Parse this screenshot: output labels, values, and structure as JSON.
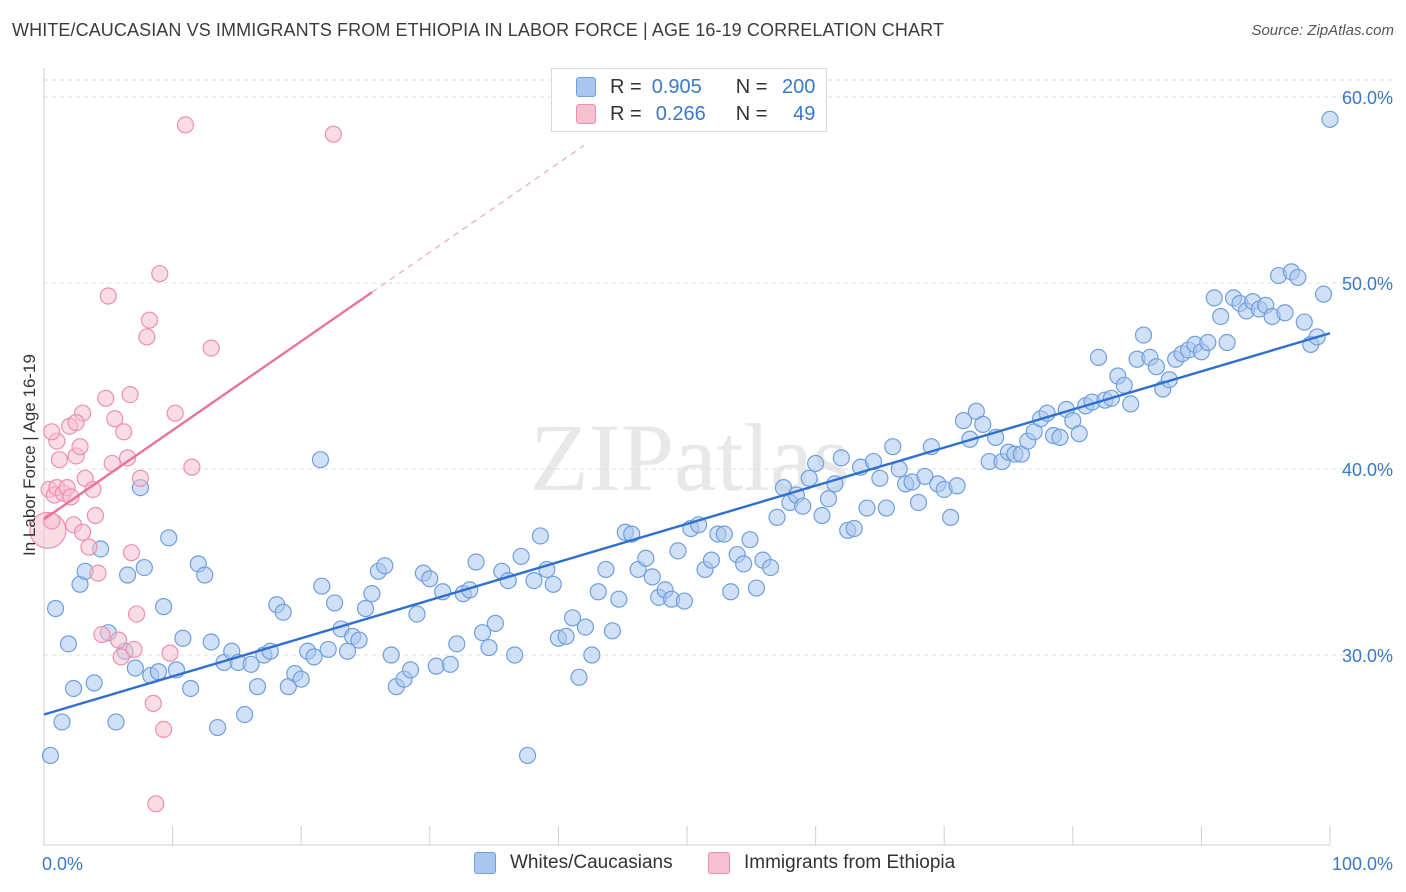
{
  "header": {
    "title": "WHITE/CAUCASIAN VS IMMIGRANTS FROM ETHIOPIA IN LABOR FORCE | AGE 16-19 CORRELATION CHART",
    "source": "Source: ZipAtlas.com"
  },
  "watermark": "ZIPatlas",
  "legend": {
    "r_label": "R =",
    "n_label": "N =",
    "rows": [
      {
        "r": "0.905",
        "n": "200"
      },
      {
        "r": "0.266",
        "n": "49"
      }
    ]
  },
  "colors": {
    "blue_fill": "#a9c7ee",
    "blue_stroke": "#6f9fdc",
    "blue_line": "#2e6fd0",
    "pink_fill": "#f5c0d0",
    "pink_stroke": "#ec90ae",
    "pink_line": "#e8739a",
    "label_blue": "#3a78c9"
  },
  "chart_data": {
    "type": "scatter",
    "title": "WHITE/CAUCASIAN VS IMMIGRANTS FROM ETHIOPIA IN LABOR FORCE | AGE 16-19 CORRELATION CHART",
    "xlabel": "",
    "ylabel": "In Labor Force | Age 16-19",
    "xlim": [
      0,
      100
    ],
    "ylim": [
      20.5,
      62
    ],
    "x_tick_labels": [
      "0.0%",
      "100.0%"
    ],
    "y_ticks": [
      30,
      40,
      50,
      60
    ],
    "y_tick_labels": [
      "30.0%",
      "40.0%",
      "50.0%",
      "60.0%"
    ],
    "grid": true,
    "legend_position": "bottom-center",
    "series": [
      {
        "name": "Whites/Caucasians",
        "r": 0.905,
        "n": 200,
        "trend": {
          "x": [
            0,
            100
          ],
          "y": [
            26.8,
            47.3
          ]
        },
        "points": [
          [
            0.5,
            24.6
          ],
          [
            0.9,
            32.5
          ],
          [
            1.4,
            26.4
          ],
          [
            1.9,
            30.6
          ],
          [
            2.3,
            28.2
          ],
          [
            2.8,
            33.8
          ],
          [
            3.2,
            34.5
          ],
          [
            3.9,
            28.5
          ],
          [
            4.4,
            35.7
          ],
          [
            5.0,
            31.2
          ],
          [
            5.6,
            26.4
          ],
          [
            6.3,
            30.2
          ],
          [
            6.5,
            34.3
          ],
          [
            7.1,
            29.3
          ],
          [
            7.8,
            34.7
          ],
          [
            8.3,
            28.9
          ],
          [
            8.9,
            29.1
          ],
          [
            9.3,
            32.6
          ],
          [
            9.7,
            36.3
          ],
          [
            10.3,
            29.2
          ],
          [
            10.8,
            30.9
          ],
          [
            11.4,
            28.2
          ],
          [
            12.0,
            34.9
          ],
          [
            12.5,
            34.3
          ],
          [
            13.0,
            30.7
          ],
          [
            13.5,
            26.1
          ],
          [
            14.0,
            29.6
          ],
          [
            14.6,
            30.2
          ],
          [
            15.1,
            29.6
          ],
          [
            15.6,
            26.8
          ],
          [
            16.1,
            29.5
          ],
          [
            16.6,
            28.3
          ],
          [
            17.1,
            30.0
          ],
          [
            17.6,
            30.2
          ],
          [
            18.1,
            32.7
          ],
          [
            18.6,
            32.3
          ],
          [
            19.0,
            28.3
          ],
          [
            19.5,
            29.0
          ],
          [
            20.0,
            28.7
          ],
          [
            20.5,
            30.2
          ],
          [
            21.0,
            29.9
          ],
          [
            21.6,
            33.7
          ],
          [
            22.1,
            30.3
          ],
          [
            22.6,
            32.8
          ],
          [
            23.1,
            31.4
          ],
          [
            23.6,
            30.2
          ],
          [
            24.0,
            31.0
          ],
          [
            24.5,
            30.8
          ],
          [
            25.0,
            32.5
          ],
          [
            25.5,
            33.3
          ],
          [
            26.0,
            34.5
          ],
          [
            26.5,
            34.8
          ],
          [
            27.0,
            30.0
          ],
          [
            27.4,
            28.3
          ],
          [
            28.0,
            28.7
          ],
          [
            28.5,
            29.2
          ],
          [
            29.0,
            32.2
          ],
          [
            29.5,
            34.4
          ],
          [
            30.0,
            34.1
          ],
          [
            30.5,
            29.4
          ],
          [
            31.0,
            33.4
          ],
          [
            31.6,
            29.5
          ],
          [
            32.1,
            30.6
          ],
          [
            32.6,
            33.3
          ],
          [
            33.1,
            33.5
          ],
          [
            33.6,
            35.0
          ],
          [
            34.1,
            31.2
          ],
          [
            34.6,
            30.4
          ],
          [
            35.1,
            31.7
          ],
          [
            35.6,
            34.5
          ],
          [
            36.1,
            34.0
          ],
          [
            36.6,
            30.0
          ],
          [
            37.1,
            35.3
          ],
          [
            37.6,
            24.6
          ],
          [
            38.1,
            34.0
          ],
          [
            38.6,
            36.4
          ],
          [
            39.1,
            34.6
          ],
          [
            39.6,
            33.8
          ],
          [
            40.0,
            30.9
          ],
          [
            40.6,
            31.0
          ],
          [
            41.1,
            32.0
          ],
          [
            41.6,
            28.8
          ],
          [
            42.1,
            31.5
          ],
          [
            42.6,
            30.0
          ],
          [
            43.1,
            33.4
          ],
          [
            43.7,
            34.6
          ],
          [
            44.2,
            31.3
          ],
          [
            44.7,
            33.0
          ],
          [
            45.2,
            36.6
          ],
          [
            45.7,
            36.5
          ],
          [
            46.2,
            34.6
          ],
          [
            46.8,
            35.2
          ],
          [
            47.3,
            34.2
          ],
          [
            47.8,
            33.1
          ],
          [
            48.3,
            33.5
          ],
          [
            48.8,
            33.0
          ],
          [
            49.3,
            35.6
          ],
          [
            49.8,
            32.9
          ],
          [
            50.3,
            36.8
          ],
          [
            50.9,
            37.0
          ],
          [
            51.4,
            34.6
          ],
          [
            51.9,
            35.1
          ],
          [
            52.4,
            36.5
          ],
          [
            52.9,
            36.5
          ],
          [
            53.4,
            33.4
          ],
          [
            53.9,
            35.4
          ],
          [
            54.4,
            34.9
          ],
          [
            54.9,
            36.2
          ],
          [
            55.4,
            33.6
          ],
          [
            55.9,
            35.1
          ],
          [
            56.5,
            34.7
          ],
          [
            57.0,
            37.4
          ],
          [
            57.5,
            39.0
          ],
          [
            58.0,
            38.2
          ],
          [
            58.5,
            38.6
          ],
          [
            59.0,
            38.0
          ],
          [
            59.5,
            39.5
          ],
          [
            60.0,
            40.3
          ],
          [
            60.5,
            37.5
          ],
          [
            61.0,
            38.4
          ],
          [
            61.5,
            39.2
          ],
          [
            62.0,
            40.6
          ],
          [
            62.5,
            36.7
          ],
          [
            63.0,
            36.8
          ],
          [
            63.5,
            40.1
          ],
          [
            64.0,
            37.9
          ],
          [
            64.5,
            40.4
          ],
          [
            65.0,
            39.5
          ],
          [
            65.5,
            37.9
          ],
          [
            66.0,
            41.2
          ],
          [
            66.5,
            40.0
          ],
          [
            67.0,
            39.2
          ],
          [
            67.5,
            39.3
          ],
          [
            68.0,
            38.2
          ],
          [
            68.5,
            39.6
          ],
          [
            69.0,
            41.2
          ],
          [
            69.5,
            39.2
          ],
          [
            70.0,
            38.9
          ],
          [
            70.5,
            37.4
          ],
          [
            71.0,
            39.1
          ],
          [
            71.5,
            42.6
          ],
          [
            72.0,
            41.6
          ],
          [
            72.5,
            43.1
          ],
          [
            73.0,
            42.4
          ],
          [
            73.5,
            40.4
          ],
          [
            74.0,
            41.7
          ],
          [
            74.5,
            40.4
          ],
          [
            75.0,
            40.9
          ],
          [
            75.5,
            40.8
          ],
          [
            76.0,
            40.8
          ],
          [
            76.5,
            41.5
          ],
          [
            77.0,
            42.0
          ],
          [
            77.5,
            42.7
          ],
          [
            78.0,
            43.0
          ],
          [
            78.5,
            41.8
          ],
          [
            79.0,
            41.7
          ],
          [
            79.5,
            43.2
          ],
          [
            80.0,
            42.6
          ],
          [
            80.5,
            41.9
          ],
          [
            81.0,
            43.4
          ],
          [
            81.5,
            43.6
          ],
          [
            82.0,
            46.0
          ],
          [
            82.5,
            43.7
          ],
          [
            83.0,
            43.8
          ],
          [
            83.5,
            45.0
          ],
          [
            84.0,
            44.5
          ],
          [
            84.5,
            43.5
          ],
          [
            85.0,
            45.9
          ],
          [
            85.5,
            47.2
          ],
          [
            86.0,
            46.0
          ],
          [
            86.5,
            45.5
          ],
          [
            87.0,
            44.3
          ],
          [
            87.5,
            44.8
          ],
          [
            88.0,
            45.9
          ],
          [
            88.5,
            46.2
          ],
          [
            89.0,
            46.4
          ],
          [
            89.5,
            46.7
          ],
          [
            90.0,
            46.3
          ],
          [
            90.5,
            46.8
          ],
          [
            91.0,
            49.2
          ],
          [
            91.5,
            48.2
          ],
          [
            92.0,
            46.8
          ],
          [
            92.5,
            49.2
          ],
          [
            93.0,
            48.9
          ],
          [
            93.5,
            48.5
          ],
          [
            94.0,
            49.0
          ],
          [
            94.5,
            48.6
          ],
          [
            95.0,
            48.8
          ],
          [
            95.5,
            48.2
          ],
          [
            96.0,
            50.4
          ],
          [
            96.5,
            48.4
          ],
          [
            97.0,
            50.6
          ],
          [
            97.5,
            50.3
          ],
          [
            98.0,
            47.9
          ],
          [
            98.5,
            46.7
          ],
          [
            99.0,
            47.1
          ],
          [
            99.5,
            49.4
          ],
          [
            100.0,
            58.8
          ],
          [
            7.5,
            39.0
          ],
          [
            21.5,
            40.5
          ]
        ]
      },
      {
        "name": "Immigrants from Ethiopia",
        "r": 0.266,
        "n": 49,
        "trend": {
          "x": [
            0,
            25.5
          ],
          "y": [
            37.3,
            49.5
          ]
        },
        "trend_extension": {
          "x": [
            25.5,
            42
          ],
          "y": [
            49.5,
            57.4
          ]
        },
        "points": [
          [
            0.3,
            36.7
          ],
          [
            0.4,
            38.9
          ],
          [
            0.6,
            37.2
          ],
          [
            0.8,
            38.6
          ],
          [
            1.0,
            39.0
          ],
          [
            1.2,
            40.5
          ],
          [
            1.5,
            38.7
          ],
          [
            1.8,
            39.0
          ],
          [
            2.0,
            42.3
          ],
          [
            2.1,
            38.5
          ],
          [
            2.3,
            37.0
          ],
          [
            2.5,
            40.7
          ],
          [
            2.8,
            41.2
          ],
          [
            3.0,
            36.6
          ],
          [
            3.2,
            39.5
          ],
          [
            3.5,
            35.8
          ],
          [
            3.8,
            38.9
          ],
          [
            4.0,
            37.5
          ],
          [
            4.2,
            34.4
          ],
          [
            4.5,
            31.1
          ],
          [
            4.8,
            43.8
          ],
          [
            5.0,
            49.3
          ],
          [
            5.3,
            40.3
          ],
          [
            5.5,
            42.7
          ],
          [
            5.8,
            30.8
          ],
          [
            6.0,
            29.9
          ],
          [
            6.2,
            42.0
          ],
          [
            6.5,
            40.6
          ],
          [
            6.8,
            35.5
          ],
          [
            7.0,
            30.3
          ],
          [
            7.2,
            32.2
          ],
          [
            7.5,
            39.5
          ],
          [
            8.0,
            47.1
          ],
          [
            8.2,
            48.0
          ],
          [
            8.5,
            27.4
          ],
          [
            8.7,
            22.0
          ],
          [
            9.0,
            50.5
          ],
          [
            9.3,
            26.0
          ],
          [
            9.8,
            30.1
          ],
          [
            10.2,
            43.0
          ],
          [
            11.0,
            58.5
          ],
          [
            13.0,
            46.5
          ],
          [
            3.0,
            43.0
          ],
          [
            1.0,
            41.5
          ],
          [
            2.5,
            42.5
          ],
          [
            6.7,
            44.0
          ],
          [
            11.5,
            40.1
          ],
          [
            0.6,
            42.0
          ],
          [
            22.5,
            58.0
          ]
        ]
      }
    ]
  },
  "bottom_legend": {
    "items": [
      "Whites/Caucasians",
      "Immigrants from Ethiopia"
    ]
  }
}
